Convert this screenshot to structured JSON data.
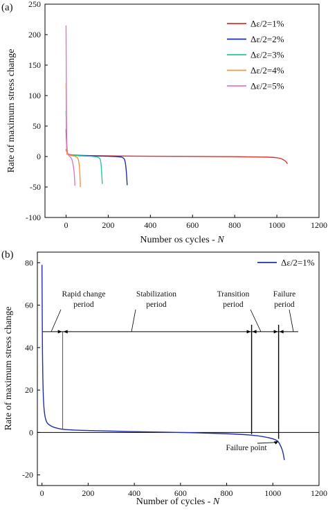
{
  "chart_data": [
    {
      "panel_label": "(a)",
      "type": "line",
      "xlabel": "Number os cycles - ",
      "xlabel_var": "N",
      "ylabel": "Rate of maximum stress change",
      "xlim": [
        -100,
        1200
      ],
      "ylim": [
        -100,
        250
      ],
      "xticks": [
        0,
        200,
        400,
        600,
        800,
        1000,
        1200
      ],
      "yticks": [
        -100,
        -50,
        0,
        50,
        100,
        150,
        200,
        250
      ],
      "legend_position": "top-right",
      "series": [
        {
          "name": "Δε/2=1%",
          "color": "#e0302a",
          "x": [
            0,
            5,
            15,
            30,
            60,
            100,
            200,
            400,
            600,
            800,
            950,
            1000,
            1020,
            1035,
            1045,
            1050
          ],
          "y": [
            12,
            6,
            3.5,
            2.5,
            2,
            1.6,
            1,
            0.5,
            0.2,
            -0.2,
            -1,
            -2,
            -3.5,
            -6,
            -9,
            -12
          ]
        },
        {
          "name": "Δε/2=2%",
          "color": "#1f2ea8",
          "x": [
            0,
            4,
            10,
            25,
            60,
            120,
            200,
            250,
            270,
            280,
            286,
            290
          ],
          "y": [
            45,
            10,
            4,
            2.5,
            1.8,
            1.2,
            0.5,
            -0.5,
            -2,
            -8,
            -25,
            -47
          ]
        },
        {
          "name": "Δε/2=3%",
          "color": "#20c89a",
          "x": [
            0,
            4,
            10,
            30,
            80,
            130,
            155,
            165,
            172
          ],
          "y": [
            75,
            12,
            4,
            2,
            1,
            0,
            -2,
            -10,
            -45
          ]
        },
        {
          "name": "Δε/2=4%",
          "color": "#f2983a",
          "x": [
            0,
            3,
            8,
            20,
            45,
            58,
            64,
            68
          ],
          "y": [
            120,
            15,
            5,
            2,
            0,
            -5,
            -20,
            -50
          ]
        },
        {
          "name": "Δε/2=5%",
          "color": "#e474c8",
          "x": [
            0,
            2,
            4,
            8,
            15,
            28,
            38,
            42
          ],
          "y": [
            215,
            60,
            20,
            5,
            1,
            -5,
            -25,
            -48
          ]
        }
      ]
    },
    {
      "panel_label": "(b)",
      "type": "line",
      "xlabel": "Number of cycles - ",
      "xlabel_var": "N",
      "ylabel": "Rate of maximum stress change",
      "xlim": [
        -20,
        1200
      ],
      "ylim": [
        -25,
        85
      ],
      "xticks": [
        0,
        200,
        400,
        600,
        800,
        1000,
        1200
      ],
      "yticks": [
        -20,
        0,
        20,
        40,
        60,
        80
      ],
      "legend_position": "top-right",
      "series": [
        {
          "name": "Δε/2=1%",
          "color": "#1f2ea8",
          "x": [
            0,
            2,
            5,
            10,
            20,
            40,
            60,
            90,
            150,
            250,
            400,
            600,
            800,
            900,
            960,
            1000,
            1020,
            1030,
            1040,
            1045,
            1050
          ],
          "y": [
            79,
            40,
            20,
            10,
            5,
            3,
            2.2,
            1.5,
            1.1,
            0.8,
            0.4,
            0,
            -0.6,
            -1.2,
            -2,
            -3,
            -4,
            -5.5,
            -8,
            -10,
            -13
          ]
        }
      ],
      "zero_line_y": 0,
      "dimension_line_y": 47.5,
      "dividers_x": [
        90,
        908,
        1025
      ],
      "annotations": [
        {
          "text": "Rapid change",
          "line": 1
        },
        {
          "text": "period",
          "line": 2
        },
        {
          "text": "Stabilization",
          "line": 1
        },
        {
          "text": "period",
          "line": 2
        },
        {
          "text": "Transition",
          "line": 1
        },
        {
          "text": "period",
          "line": 2
        },
        {
          "text": "Failure",
          "line": 1
        },
        {
          "text": "period",
          "line": 2
        },
        {
          "text": "Failure point",
          "line": 1
        }
      ],
      "failure_point": [
        1025,
        -4
      ]
    }
  ]
}
